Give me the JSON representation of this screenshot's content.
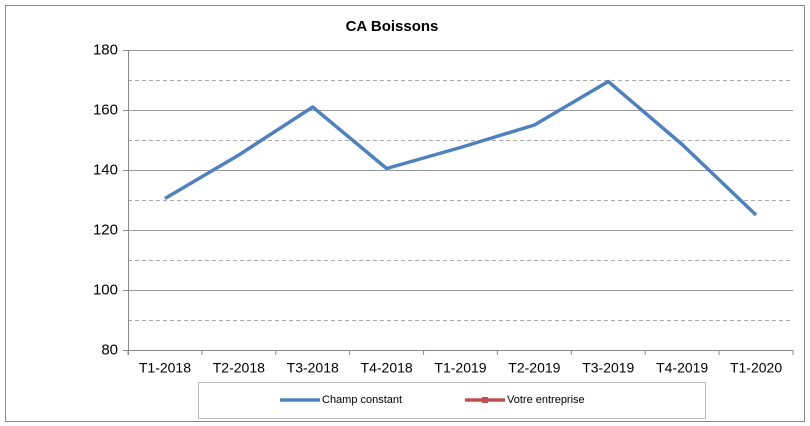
{
  "chart_data": {
    "type": "line",
    "title": "CA Boissons",
    "categories": [
      "T1-2018",
      "T2-2018",
      "T3-2018",
      "T4-2018",
      "T1-2019",
      "T2-2019",
      "T3-2019",
      "T4-2019",
      "T1-2020"
    ],
    "series": [
      {
        "name": "Champ constant",
        "color": "#4f81bd",
        "values": [
          130.5,
          145,
          161,
          140.5,
          147.5,
          155,
          169.5,
          148.5,
          125
        ]
      },
      {
        "name": "Votre entreprise",
        "color": "#c0504d",
        "values": [
          null,
          null,
          null,
          null,
          null,
          null,
          null,
          null,
          null
        ]
      }
    ],
    "ylim": [
      80,
      180
    ],
    "yticks": [
      80,
      100,
      120,
      140,
      160,
      180
    ],
    "minor_yticks": [
      90,
      110,
      130,
      150,
      170
    ],
    "grid": true,
    "legend": "bottom"
  }
}
